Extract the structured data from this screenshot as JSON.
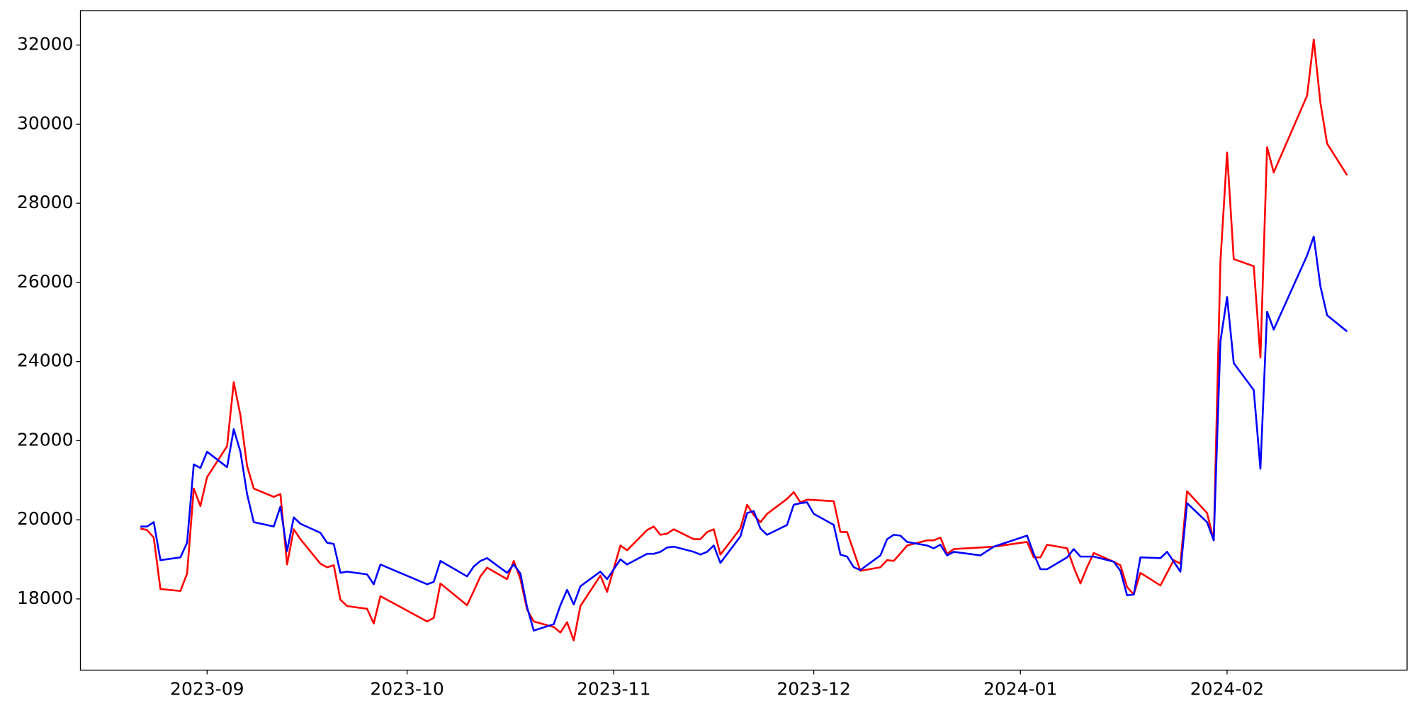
{
  "chart_data": {
    "type": "line",
    "x": [
      19591,
      19592,
      19593,
      19594,
      19597,
      19598,
      19599,
      19600,
      19601,
      19604,
      19605,
      19606,
      19607,
      19608,
      19611,
      19612,
      19613,
      19614,
      19615,
      19618,
      19619,
      19620,
      19621,
      19622,
      19625,
      19626,
      19627,
      19634,
      19635,
      19636,
      19640,
      19641,
      19642,
      19643,
      19646,
      19647,
      19648,
      19649,
      19650,
      19653,
      19654,
      19655,
      19656,
      19657,
      19660,
      19661,
      19663,
      19664,
      19667,
      19668,
      19669,
      19670,
      19671,
      19674,
      19675,
      19676,
      19677,
      19678,
      19681,
      19682,
      19683,
      19684,
      19685,
      19688,
      19689,
      19690,
      19691,
      19692,
      19695,
      19696,
      19697,
      19698,
      19699,
      19702,
      19703,
      19704,
      19705,
      19706,
      19709,
      19710,
      19711,
      19712,
      19713,
      19717,
      19719,
      19724,
      19725,
      19726,
      19727,
      19730,
      19731,
      19732,
      19733,
      19734,
      19737,
      19738,
      19739,
      19740,
      19741,
      19744,
      19745,
      19746,
      19747,
      19748,
      19751,
      19752,
      19753,
      19754,
      19755,
      19758,
      19759,
      19760,
      19761,
      19766,
      19767,
      19768,
      19769,
      19772
    ],
    "series": [
      {
        "color": "#ff0000",
        "values": [
          19780,
          19740,
          19550,
          18250,
          18200,
          18640,
          20790,
          20350,
          21080,
          21860,
          23480,
          22640,
          21360,
          20790,
          20580,
          20650,
          18870,
          19760,
          19510,
          18890,
          18800,
          18850,
          17980,
          17820,
          17750,
          17380,
          18070,
          17430,
          17520,
          18390,
          17840,
          18200,
          18570,
          18790,
          18500,
          18960,
          18500,
          17730,
          17430,
          17290,
          17150,
          17410,
          16950,
          17820,
          18590,
          18180,
          19350,
          19230,
          19740,
          19830,
          19620,
          19650,
          19760,
          19510,
          19510,
          19690,
          19760,
          19120,
          19780,
          20380,
          20120,
          19940,
          20150,
          20530,
          20700,
          20440,
          20510,
          20500,
          20470,
          19690,
          19690,
          19200,
          18710,
          18800,
          18980,
          18960,
          19150,
          19350,
          19480,
          19480,
          19550,
          19140,
          19260,
          19300,
          19320,
          19440,
          19050,
          19050,
          19370,
          19280,
          18800,
          18390,
          18800,
          19160,
          18940,
          18850,
          18300,
          18110,
          18660,
          18340,
          18660,
          18980,
          18890,
          20720,
          20170,
          19480,
          26520,
          29280,
          26590,
          26410,
          24100,
          29420,
          28780,
          30720,
          32140,
          30540,
          29510,
          28710
        ]
      },
      {
        "color": "#0000ff",
        "values": [
          19830,
          19830,
          19940,
          18980,
          19050,
          19420,
          21400,
          21310,
          21720,
          21330,
          22290,
          21720,
          20650,
          19940,
          19830,
          20330,
          19210,
          20060,
          19900,
          19670,
          19420,
          19390,
          18660,
          18690,
          18620,
          18370,
          18870,
          18370,
          18430,
          18960,
          18570,
          18820,
          18960,
          19030,
          18660,
          18870,
          18640,
          17790,
          17200,
          17360,
          17840,
          18230,
          17860,
          18320,
          18690,
          18500,
          19000,
          18870,
          19140,
          19140,
          19190,
          19300,
          19320,
          19190,
          19120,
          19190,
          19350,
          18910,
          19580,
          20170,
          20220,
          19780,
          19620,
          19870,
          20380,
          20420,
          20440,
          20150,
          19870,
          19120,
          19070,
          18800,
          18730,
          19100,
          19510,
          19620,
          19600,
          19440,
          19350,
          19280,
          19370,
          19100,
          19190,
          19100,
          19320,
          19600,
          19140,
          18750,
          18750,
          19050,
          19260,
          19070,
          19070,
          19070,
          18940,
          18710,
          18090,
          18110,
          19050,
          19030,
          19190,
          18940,
          18690,
          20420,
          19940,
          19480,
          24510,
          25630,
          23960,
          23280,
          21290,
          25260,
          24810,
          26680,
          27160,
          25900,
          25170,
          24760
        ]
      }
    ],
    "xlim": [
      19582,
      19781
    ],
    "xticks": [
      {
        "value": 19601,
        "label": "2023-09"
      },
      {
        "value": 19631,
        "label": "2023-10"
      },
      {
        "value": 19662,
        "label": "2023-11"
      },
      {
        "value": 19692,
        "label": "2023-12"
      },
      {
        "value": 19723,
        "label": "2024-01"
      },
      {
        "value": 19754,
        "label": "2024-02"
      }
    ],
    "ylim": [
      16200,
      32870
    ],
    "yticks": [
      18000,
      20000,
      22000,
      24000,
      26000,
      28000,
      30000,
      32000
    ],
    "grid": false
  }
}
